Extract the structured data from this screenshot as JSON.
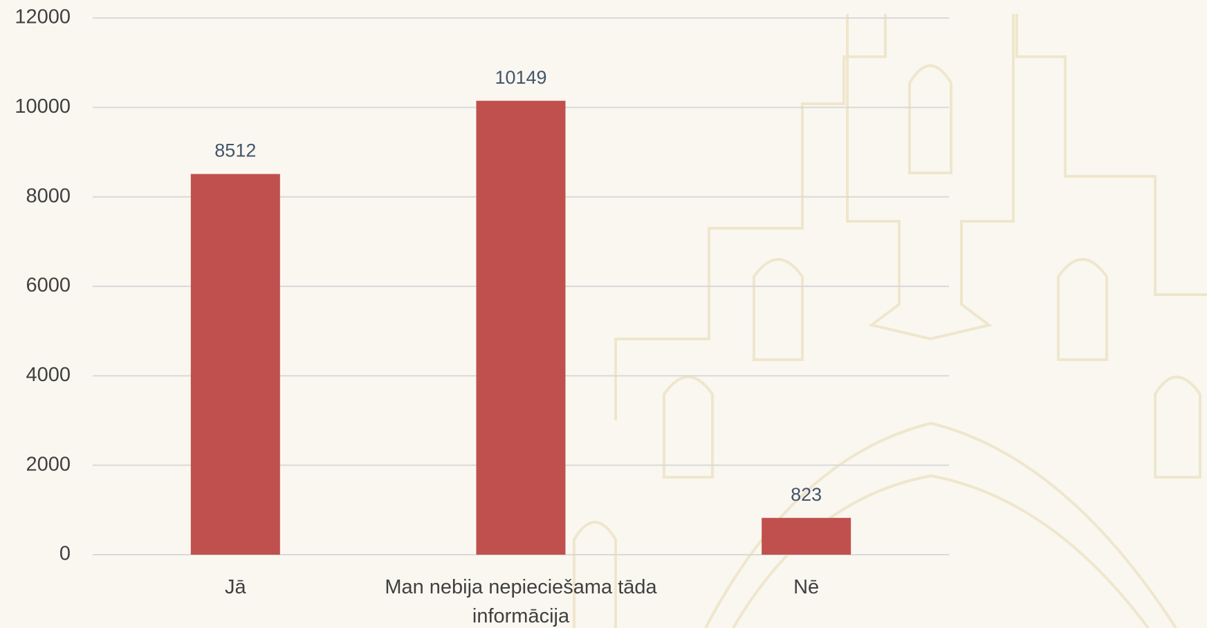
{
  "chart_data": {
    "type": "bar",
    "categories": [
      "Jā",
      "Man nebija nepieciešama tāda informācija",
      "Nē"
    ],
    "values": [
      8512,
      10149,
      823
    ],
    "color": "#c0504d",
    "ylim": [
      0,
      12000
    ],
    "yticks": [
      0,
      2000,
      4000,
      6000,
      8000,
      10000,
      12000
    ],
    "grid": true
  }
}
